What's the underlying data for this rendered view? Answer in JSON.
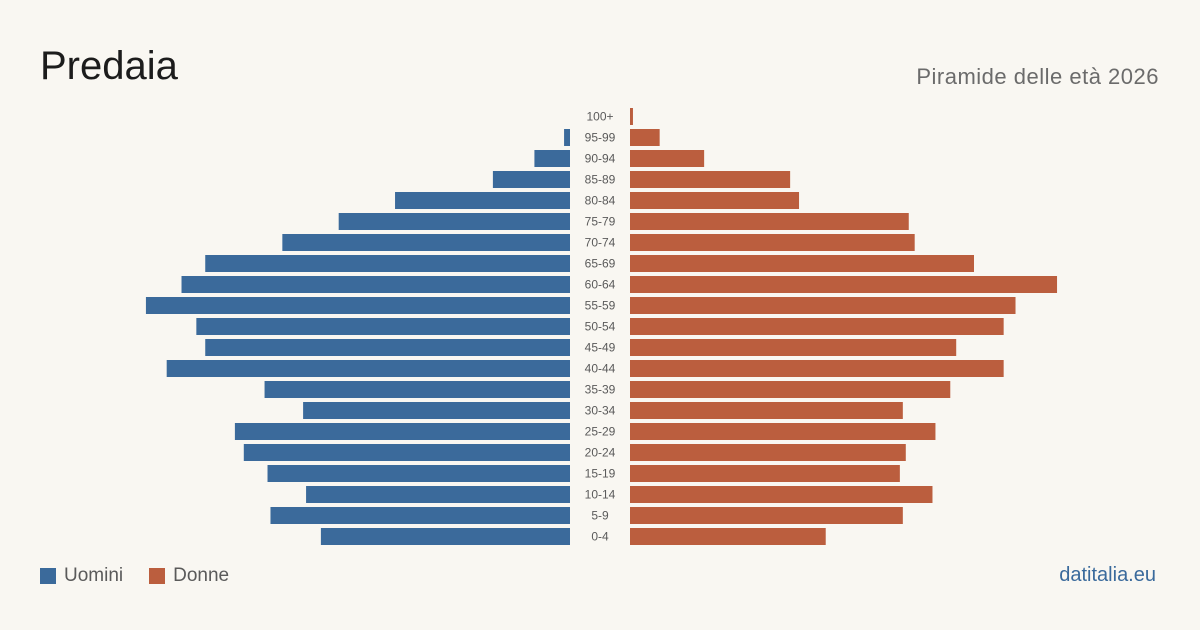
{
  "header": {
    "title": "Predaia",
    "subtitle": "Piramide delle età 2026"
  },
  "legend": {
    "men_label": "Uomini",
    "women_label": "Donne"
  },
  "source": "datitalia.eu",
  "colors": {
    "men": "#3b6a9b",
    "women": "#bb5e3e",
    "background": "#f9f7f2",
    "label": "#5a5a5a"
  },
  "chart_data": {
    "type": "bar",
    "orientation": "horizontal-pyramid",
    "categories": [
      "100+",
      "95-99",
      "90-94",
      "85-89",
      "80-84",
      "75-79",
      "70-74",
      "65-69",
      "60-64",
      "55-59",
      "50-54",
      "45-49",
      "40-44",
      "35-39",
      "30-34",
      "25-29",
      "20-24",
      "15-19",
      "10-14",
      "5-9",
      "0-4"
    ],
    "series": [
      {
        "name": "Uomini",
        "values": [
          0,
          2,
          12,
          26,
          59,
          78,
          97,
          123,
          131,
          143,
          126,
          123,
          136,
          103,
          90,
          113,
          110,
          102,
          89,
          101,
          84
        ]
      },
      {
        "name": "Donne",
        "values": [
          1,
          10,
          25,
          54,
          57,
          94,
          96,
          116,
          144,
          130,
          126,
          110,
          126,
          108,
          92,
          103,
          93,
          91,
          102,
          92,
          66
        ]
      }
    ],
    "xlim": [
      0,
      145
    ],
    "grid": false,
    "legend_position": "bottom-left"
  }
}
